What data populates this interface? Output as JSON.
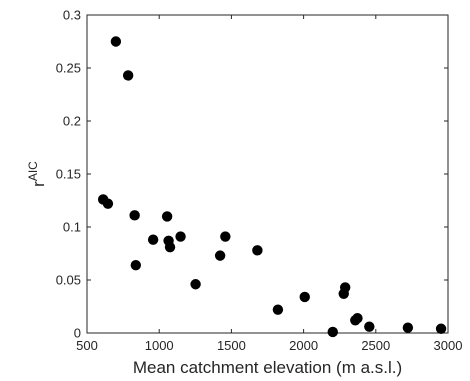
{
  "chart_data": {
    "type": "scatter",
    "title": "",
    "xlabel": "Mean catchment elevation (m a.s.l.)",
    "ylabel_base": "r",
    "ylabel_sup": "AIC",
    "xlim": [
      500,
      3000
    ],
    "ylim": [
      0,
      0.3
    ],
    "x_ticks": [
      500,
      1000,
      1500,
      2000,
      2500,
      3000
    ],
    "x_tick_labels": [
      "500",
      "1000",
      "1500",
      "2000",
      "2500",
      "3000"
    ],
    "y_ticks": [
      0,
      0.05,
      0.1,
      0.15,
      0.2,
      0.25,
      0.3
    ],
    "y_tick_labels": [
      "0",
      "0.05",
      "0.1",
      "0.15",
      "0.2",
      "0.25",
      "0.3"
    ],
    "grid": false,
    "marker_color": "#000000",
    "points": [
      {
        "x": 700,
        "y": 0.275
      },
      {
        "x": 785,
        "y": 0.243
      },
      {
        "x": 612,
        "y": 0.126
      },
      {
        "x": 645,
        "y": 0.122
      },
      {
        "x": 830,
        "y": 0.111
      },
      {
        "x": 1055,
        "y": 0.11
      },
      {
        "x": 838,
        "y": 0.064
      },
      {
        "x": 958,
        "y": 0.088
      },
      {
        "x": 1065,
        "y": 0.087
      },
      {
        "x": 1075,
        "y": 0.081
      },
      {
        "x": 1148,
        "y": 0.091
      },
      {
        "x": 1252,
        "y": 0.046
      },
      {
        "x": 1422,
        "y": 0.073
      },
      {
        "x": 1458,
        "y": 0.091
      },
      {
        "x": 1680,
        "y": 0.078
      },
      {
        "x": 1822,
        "y": 0.022
      },
      {
        "x": 2008,
        "y": 0.034
      },
      {
        "x": 2202,
        "y": 0.001
      },
      {
        "x": 2288,
        "y": 0.043
      },
      {
        "x": 2278,
        "y": 0.037
      },
      {
        "x": 2358,
        "y": 0.012
      },
      {
        "x": 2373,
        "y": 0.014
      },
      {
        "x": 2455,
        "y": 0.006
      },
      {
        "x": 2722,
        "y": 0.005
      },
      {
        "x": 2952,
        "y": 0.004
      }
    ]
  }
}
